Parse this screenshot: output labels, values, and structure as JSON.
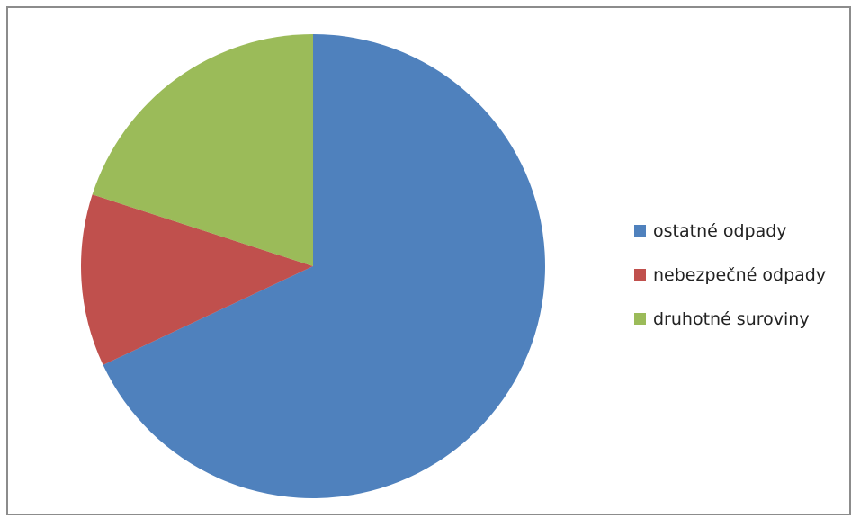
{
  "chart_data": {
    "type": "pie",
    "title": "",
    "categories": [
      "ostatné odpady",
      "nebezpečné odpady",
      "druhotné suroviny"
    ],
    "values": [
      68,
      12,
      20
    ],
    "colors": [
      "#4f81bd",
      "#c0504d",
      "#9bbb59"
    ],
    "start_angle_deg": 0,
    "direction": "clockwise",
    "legend_position": "right"
  }
}
